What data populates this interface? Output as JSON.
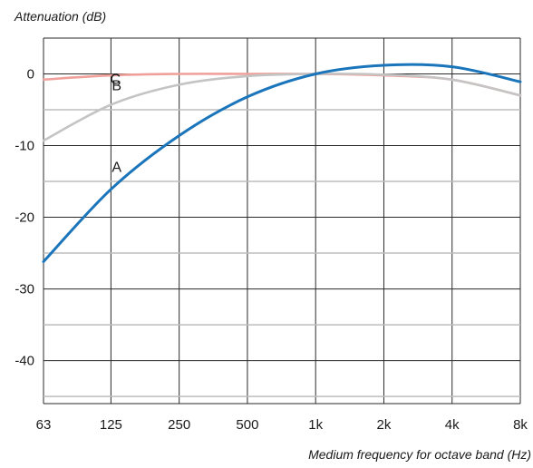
{
  "chart_data": {
    "type": "line",
    "title": "",
    "ylabel": "Attenuation (dB)",
    "xlabel": "Medium frequency for octave band (Hz)",
    "x_scale": "log",
    "x": [
      63,
      125,
      250,
      500,
      1000,
      2000,
      4000,
      8000
    ],
    "x_tick_labels": [
      "63",
      "125",
      "250",
      "500",
      "1k",
      "2k",
      "4k",
      "8k"
    ],
    "y_ticks": [
      0,
      -10,
      -20,
      -30,
      -40
    ],
    "ylim": [
      -46,
      5
    ],
    "grid": true,
    "legend": "labels on curves",
    "series": [
      {
        "name": "A",
        "color": "#1b75bb",
        "values": [
          -26.2,
          -16.1,
          -8.6,
          -3.2,
          0,
          1.2,
          1.0,
          -1.1
        ]
      },
      {
        "name": "B",
        "color": "#c4c4c4",
        "values": [
          -9.3,
          -4.3,
          -1.5,
          -0.3,
          0,
          -0.1,
          -0.8,
          -3.0
        ]
      },
      {
        "name": "C",
        "color": "#f0a09a",
        "values": [
          -0.8,
          -0.2,
          0,
          0,
          0,
          -0.2,
          -0.8,
          -3.0
        ]
      }
    ]
  }
}
